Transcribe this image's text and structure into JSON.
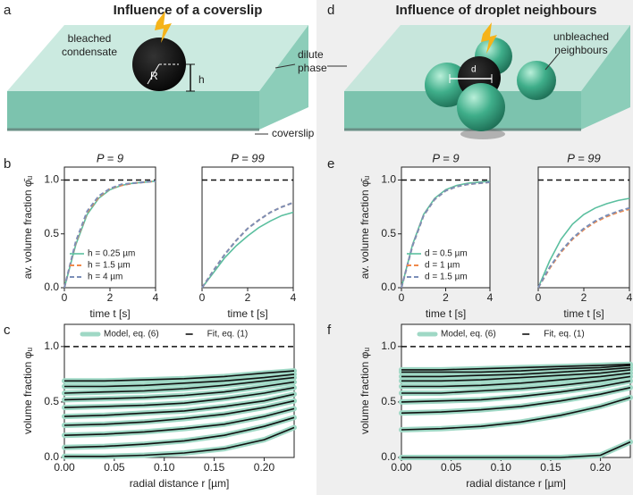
{
  "panel_labels": [
    "a",
    "b",
    "c",
    "d",
    "e",
    "f"
  ],
  "illustrations": [
    {
      "title": "Influence of a coverslip",
      "object_label": [
        "bleached",
        "condensate"
      ],
      "radius_label": "R",
      "height_label": "h",
      "phase_label": [
        "dilute",
        "phase"
      ],
      "slab_label": "coverslip"
    },
    {
      "title": "Influence of droplet neighbours",
      "neighbour_label": [
        "unbleached",
        "neighbours"
      ],
      "distance_label": "d"
    }
  ],
  "chart_data": [
    {
      "type": "line",
      "title": "P = 9",
      "xlabel": "time t [s]",
      "ylabel": "av. volume fraction φ̄ᵤ",
      "legend": "lower right",
      "x": [
        0,
        0.5,
        1,
        1.5,
        2,
        2.5,
        3,
        3.5,
        4
      ],
      "xlim": [
        0,
        4
      ],
      "ylim": [
        0,
        1.12
      ],
      "xticks": [
        0,
        2,
        4
      ],
      "yticks": [
        {
          "value": 0,
          "label": "0.0"
        },
        0.5,
        {
          "value": 1,
          "label": "1.0"
        }
      ],
      "reference_line": 1,
      "series": [
        {
          "name": "h = 0.25 µm",
          "color": "#5bbf9f",
          "linestyle": "solid",
          "values": [
            0,
            0.4,
            0.68,
            0.83,
            0.91,
            0.95,
            0.97,
            0.98,
            0.99
          ]
        },
        {
          "name": "h = 1.5 µm",
          "color": "#f08a4b",
          "linestyle": "dashed",
          "values": [
            0,
            0.42,
            0.7,
            0.84,
            0.92,
            0.95,
            0.97,
            0.98,
            0.99
          ]
        },
        {
          "name": "h = 4 µm",
          "color": "#7b8fb8",
          "linestyle": "dashed",
          "values": [
            0,
            0.43,
            0.71,
            0.85,
            0.92,
            0.96,
            0.97,
            0.98,
            0.99
          ]
        }
      ]
    },
    {
      "type": "line",
      "title": "P = 99",
      "xlabel": "time t [s]",
      "x": [
        0,
        0.5,
        1,
        1.5,
        2,
        2.5,
        3,
        3.5,
        4
      ],
      "xlim": [
        0,
        4
      ],
      "ylim": [
        0,
        1.12
      ],
      "xticks": [
        0,
        2,
        4
      ],
      "reference_line": 1,
      "series": [
        {
          "color": "#5bbf9f",
          "linestyle": "solid",
          "values": [
            0,
            0.14,
            0.28,
            0.39,
            0.48,
            0.56,
            0.62,
            0.67,
            0.7
          ]
        },
        {
          "color": "#f08a4b",
          "linestyle": "dashed",
          "values": [
            0,
            0.16,
            0.31,
            0.44,
            0.55,
            0.63,
            0.7,
            0.75,
            0.79
          ]
        },
        {
          "color": "#7b8fb8",
          "linestyle": "dashed",
          "values": [
            0,
            0.16,
            0.31,
            0.44,
            0.55,
            0.63,
            0.7,
            0.75,
            0.79
          ]
        }
      ]
    },
    {
      "type": "line",
      "title": "P = 9",
      "xlabel": "time t [s]",
      "ylabel": "av. volume fraction φ̄ᵤ",
      "legend": "lower right",
      "x": [
        0,
        0.5,
        1,
        1.5,
        2,
        2.5,
        3,
        3.5,
        4
      ],
      "xlim": [
        0,
        4
      ],
      "ylim": [
        0,
        1.12
      ],
      "xticks": [
        0,
        2,
        4
      ],
      "yticks": [
        {
          "value": 0,
          "label": "0.0"
        },
        0.5,
        {
          "value": 1,
          "label": "1.0"
        }
      ],
      "reference_line": 1,
      "series": [
        {
          "name": "d = 0.5 µm",
          "color": "#5bbf9f",
          "linestyle": "solid",
          "values": [
            0,
            0.4,
            0.68,
            0.83,
            0.91,
            0.95,
            0.97,
            0.98,
            0.99
          ]
        },
        {
          "name": "d = 1 µm",
          "color": "#f08a4b",
          "linestyle": "dashed",
          "values": [
            0,
            0.39,
            0.67,
            0.82,
            0.9,
            0.94,
            0.96,
            0.97,
            0.98
          ]
        },
        {
          "name": "d = 1.5 µm",
          "color": "#7b8fb8",
          "linestyle": "dashed",
          "values": [
            0,
            0.39,
            0.67,
            0.82,
            0.9,
            0.94,
            0.96,
            0.97,
            0.98
          ]
        }
      ]
    },
    {
      "type": "line",
      "title": "P = 99",
      "xlabel": "time t [s]",
      "x": [
        0,
        0.5,
        1,
        1.5,
        2,
        2.5,
        3,
        3.5,
        4
      ],
      "xlim": [
        0,
        4
      ],
      "ylim": [
        0,
        1.12
      ],
      "xticks": [
        0,
        2,
        4
      ],
      "reference_line": 1,
      "series": [
        {
          "color": "#5bbf9f",
          "linestyle": "solid",
          "values": [
            0,
            0.25,
            0.45,
            0.59,
            0.68,
            0.74,
            0.78,
            0.81,
            0.83
          ]
        },
        {
          "color": "#f08a4b",
          "linestyle": "dashed",
          "values": [
            0,
            0.18,
            0.33,
            0.45,
            0.54,
            0.61,
            0.66,
            0.7,
            0.73
          ]
        },
        {
          "color": "#7b8fb8",
          "linestyle": "dashed",
          "values": [
            0,
            0.19,
            0.34,
            0.46,
            0.55,
            0.62,
            0.67,
            0.71,
            0.74
          ]
        }
      ]
    },
    {
      "type": "line",
      "xlabel": "radial distance r [µm]",
      "ylabel": "volume fraction φᵤ",
      "legend": "upper center",
      "x": [
        0,
        0.04,
        0.08,
        0.12,
        0.16,
        0.2,
        0.23
      ],
      "xlim": [
        0,
        0.23
      ],
      "ylim": [
        0,
        1.2
      ],
      "xticks": [
        {
          "value": 0,
          "label": "0.00"
        },
        {
          "value": 0.05,
          "label": "0.05"
        },
        {
          "value": 0.1,
          "label": "0.10"
        },
        {
          "value": 0.15,
          "label": "0.15"
        },
        {
          "value": 0.2,
          "label": "0.20"
        }
      ],
      "yticks": [
        {
          "value": 0,
          "label": "0.0"
        },
        0.5,
        {
          "value": 1,
          "label": "1.0"
        }
      ],
      "reference_line": 1,
      "series": [
        {
          "name": "Model, eq. (6)",
          "color": "#9fd8c5",
          "linestyle": "thick",
          "curves": [
            [
              0.01,
              0.01,
              0.02,
              0.04,
              0.08,
              0.16,
              0.27
            ],
            [
              0.09,
              0.1,
              0.12,
              0.15,
              0.2,
              0.28,
              0.36
            ],
            [
              0.2,
              0.21,
              0.23,
              0.26,
              0.3,
              0.37,
              0.44
            ],
            [
              0.29,
              0.3,
              0.32,
              0.35,
              0.39,
              0.45,
              0.51
            ],
            [
              0.37,
              0.38,
              0.4,
              0.42,
              0.46,
              0.51,
              0.57
            ],
            [
              0.45,
              0.46,
              0.47,
              0.49,
              0.53,
              0.58,
              0.63
            ],
            [
              0.52,
              0.53,
              0.54,
              0.56,
              0.59,
              0.64,
              0.68
            ],
            [
              0.58,
              0.59,
              0.6,
              0.62,
              0.65,
              0.69,
              0.72
            ],
            [
              0.64,
              0.64,
              0.65,
              0.67,
              0.69,
              0.72,
              0.75
            ],
            [
              0.69,
              0.69,
              0.7,
              0.71,
              0.73,
              0.76,
              0.78
            ]
          ]
        },
        {
          "name": "Fit, eq. (1)",
          "color": "#111111",
          "linestyle": "solid",
          "curves": [
            [
              0.01,
              0.01,
              0.02,
              0.04,
              0.08,
              0.16,
              0.27
            ],
            [
              0.09,
              0.1,
              0.12,
              0.15,
              0.2,
              0.28,
              0.36
            ],
            [
              0.2,
              0.21,
              0.23,
              0.26,
              0.3,
              0.37,
              0.44
            ],
            [
              0.29,
              0.3,
              0.32,
              0.35,
              0.39,
              0.45,
              0.51
            ],
            [
              0.37,
              0.38,
              0.4,
              0.42,
              0.46,
              0.51,
              0.57
            ],
            [
              0.45,
              0.46,
              0.47,
              0.49,
              0.53,
              0.58,
              0.63
            ],
            [
              0.52,
              0.53,
              0.54,
              0.56,
              0.59,
              0.64,
              0.68
            ],
            [
              0.58,
              0.59,
              0.6,
              0.62,
              0.65,
              0.69,
              0.72
            ],
            [
              0.64,
              0.64,
              0.65,
              0.67,
              0.69,
              0.72,
              0.75
            ],
            [
              0.69,
              0.69,
              0.7,
              0.71,
              0.73,
              0.76,
              0.78
            ]
          ]
        }
      ]
    },
    {
      "type": "line",
      "xlabel": "radial distance r [µm]",
      "ylabel": "volume fraction φᵤ",
      "legend": "upper center",
      "x": [
        0,
        0.04,
        0.08,
        0.12,
        0.16,
        0.2,
        0.23
      ],
      "xlim": [
        0,
        0.23
      ],
      "ylim": [
        0,
        1.2
      ],
      "xticks": [
        {
          "value": 0,
          "label": "0.00"
        },
        {
          "value": 0.05,
          "label": "0.05"
        },
        {
          "value": 0.1,
          "label": "0.10"
        },
        {
          "value": 0.15,
          "label": "0.15"
        },
        {
          "value": 0.2,
          "label": "0.20"
        }
      ],
      "yticks": [
        {
          "value": 0,
          "label": "0.0"
        },
        0.5,
        {
          "value": 1,
          "label": "1.0"
        }
      ],
      "reference_line": 1,
      "series": [
        {
          "name": "Model, eq. (6)",
          "color": "#9fd8c5",
          "linestyle": "thick",
          "curves": [
            [
              0,
              0,
              0,
              0,
              0,
              0.02,
              0.14
            ],
            [
              0.25,
              0.26,
              0.28,
              0.32,
              0.38,
              0.46,
              0.54
            ],
            [
              0.4,
              0.41,
              0.43,
              0.46,
              0.51,
              0.57,
              0.63
            ],
            [
              0.5,
              0.51,
              0.52,
              0.55,
              0.59,
              0.64,
              0.69
            ],
            [
              0.58,
              0.58,
              0.6,
              0.62,
              0.65,
              0.69,
              0.73
            ],
            [
              0.64,
              0.64,
              0.65,
              0.67,
              0.7,
              0.73,
              0.76
            ],
            [
              0.69,
              0.69,
              0.7,
              0.72,
              0.74,
              0.76,
              0.79
            ],
            [
              0.73,
              0.73,
              0.74,
              0.75,
              0.77,
              0.79,
              0.81
            ],
            [
              0.77,
              0.77,
              0.77,
              0.78,
              0.8,
              0.81,
              0.83
            ],
            [
              0.79,
              0.79,
              0.8,
              0.81,
              0.82,
              0.83,
              0.84
            ]
          ]
        },
        {
          "name": "Fit, eq. (1)",
          "color": "#111111",
          "linestyle": "solid",
          "curves": [
            [
              0,
              0,
              0,
              0,
              0,
              0.02,
              0.14
            ],
            [
              0.25,
              0.26,
              0.28,
              0.32,
              0.38,
              0.46,
              0.54
            ],
            [
              0.4,
              0.41,
              0.43,
              0.46,
              0.51,
              0.57,
              0.63
            ],
            [
              0.5,
              0.51,
              0.52,
              0.55,
              0.59,
              0.64,
              0.69
            ],
            [
              0.58,
              0.58,
              0.6,
              0.62,
              0.65,
              0.69,
              0.73
            ],
            [
              0.64,
              0.64,
              0.65,
              0.67,
              0.7,
              0.73,
              0.76
            ],
            [
              0.69,
              0.69,
              0.7,
              0.72,
              0.74,
              0.76,
              0.79
            ],
            [
              0.73,
              0.73,
              0.74,
              0.75,
              0.77,
              0.79,
              0.81
            ],
            [
              0.77,
              0.77,
              0.77,
              0.78,
              0.8,
              0.81,
              0.83
            ],
            [
              0.79,
              0.79,
              0.8,
              0.81,
              0.82,
              0.83,
              0.84
            ]
          ]
        }
      ]
    }
  ]
}
